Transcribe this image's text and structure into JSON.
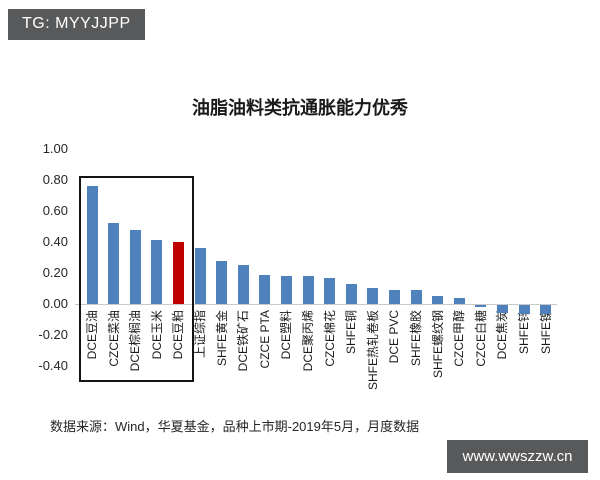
{
  "header": {
    "tag": "TG: MYYJJPP"
  },
  "footer": {
    "source": "数据来源：Wind，华夏基金，品种上市期-2019年5月，月度数据"
  },
  "watermark": {
    "text": "www.wwszzw.cn"
  },
  "colors": {
    "bar_blue": "#4f81bd",
    "bar_red": "#c00000",
    "badge_gray": "#58595b",
    "axis_line": "#c9c9c9"
  },
  "chart_data": {
    "type": "bar",
    "title": "油脂油料类抗通胀能力优秀",
    "categories": [
      "DCE豆油",
      "CZCE菜油",
      "DCE棕榈油",
      "DCE玉米",
      "DCE豆粕",
      "上证综指",
      "SHFE黄金",
      "DCE铁矿石",
      "CZCE PTA",
      "DCE塑料",
      "DCE聚丙烯",
      "CZCE棉花",
      "SHFE铜",
      "SHFE热轧卷板",
      "DCE PVC",
      "SHFE橡胶",
      "SHFE螺纹钢",
      "CZCE甲醇",
      "CZCE白糖",
      "DCE焦炭",
      "SHFE锌",
      "SHFE镍"
    ],
    "values": [
      0.76,
      0.52,
      0.48,
      0.41,
      0.4,
      0.36,
      0.28,
      0.25,
      0.19,
      0.18,
      0.18,
      0.17,
      0.13,
      0.1,
      0.09,
      0.09,
      0.05,
      0.04,
      -0.01,
      -0.05,
      -0.06,
      -0.06
    ],
    "xlabel": "",
    "ylabel": "",
    "ylim": [
      -0.4,
      1.0
    ],
    "yticks": [
      "1.00",
      "0.80",
      "0.60",
      "0.40",
      "0.20",
      "0.00",
      "-0.20",
      "-0.40"
    ],
    "grid": false,
    "legend": "none",
    "highlight": {
      "red_bar_index": 4,
      "boxed_category_range": [
        "DCE豆油",
        "DCE豆粕"
      ]
    }
  }
}
